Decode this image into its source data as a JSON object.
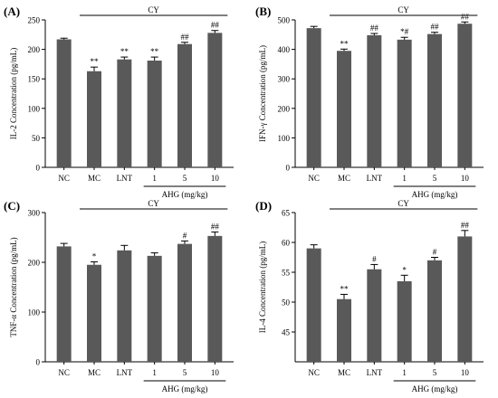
{
  "chart_data": [
    {
      "panel": "(A)",
      "type": "bar",
      "categories": [
        "NC",
        "MC",
        "LNT",
        "1",
        "5",
        "10"
      ],
      "values": [
        217,
        163,
        183,
        181,
        209,
        228
      ],
      "errors": [
        2,
        7,
        4,
        6,
        3,
        4
      ],
      "annotations": [
        "",
        "**",
        "**",
        "**",
        "##",
        "##"
      ],
      "ylabel": "IL-2 Concentration (pg/mL)",
      "ylim": [
        0,
        250
      ],
      "yticks": [
        0,
        50,
        100,
        150,
        200,
        250
      ],
      "cy_label": "CY",
      "group_label": "AHG (mg/kg)"
    },
    {
      "panel": "(B)",
      "type": "bar",
      "categories": [
        "NC",
        "MC",
        "LNT",
        "1",
        "5",
        "10"
      ],
      "values": [
        472,
        395,
        448,
        433,
        452,
        487
      ],
      "errors": [
        6,
        6,
        6,
        8,
        6,
        6
      ],
      "annotations": [
        "",
        "**",
        "##",
        "*#",
        "##",
        "##"
      ],
      "ylabel": "IFN-γ Concentration (pg/mL)",
      "ylim": [
        0,
        500
      ],
      "yticks": [
        0,
        100,
        200,
        300,
        400,
        500
      ],
      "cy_label": "CY",
      "group_label": "AHG (mg/kg)"
    },
    {
      "panel": "(C)",
      "type": "bar",
      "categories": [
        "NC",
        "MC",
        "LNT",
        "1",
        "5",
        "10"
      ],
      "values": [
        232,
        195,
        224,
        213,
        237,
        253
      ],
      "errors": [
        6,
        6,
        10,
        6,
        6,
        8
      ],
      "annotations": [
        "",
        "*",
        "",
        "",
        "#",
        "##"
      ],
      "ylabel": "TNF-α Concentration (pg/mL)",
      "ylim": [
        0,
        300
      ],
      "yticks": [
        0,
        100,
        200,
        300
      ],
      "cy_label": "CY",
      "group_label": "AHG (mg/kg)"
    },
    {
      "panel": "(D)",
      "type": "bar",
      "categories": [
        "NC",
        "MC",
        "LNT",
        "1",
        "5",
        "10"
      ],
      "values": [
        59,
        50.5,
        55.5,
        53.5,
        57,
        61
      ],
      "errors": [
        0.6,
        0.8,
        0.8,
        1.0,
        0.5,
        1.0
      ],
      "annotations": [
        "",
        "**",
        "#",
        "*",
        "#",
        "##"
      ],
      "ylabel": "IL-4 Concentration (pg/mL)",
      "ylim": [
        40,
        65
      ],
      "yticks": [
        45,
        50,
        55,
        60,
        65
      ],
      "cy_label": "CY",
      "group_label": "AHG (mg/kg)"
    }
  ],
  "colors": {
    "bar": "#595959",
    "axis": "#000000"
  }
}
